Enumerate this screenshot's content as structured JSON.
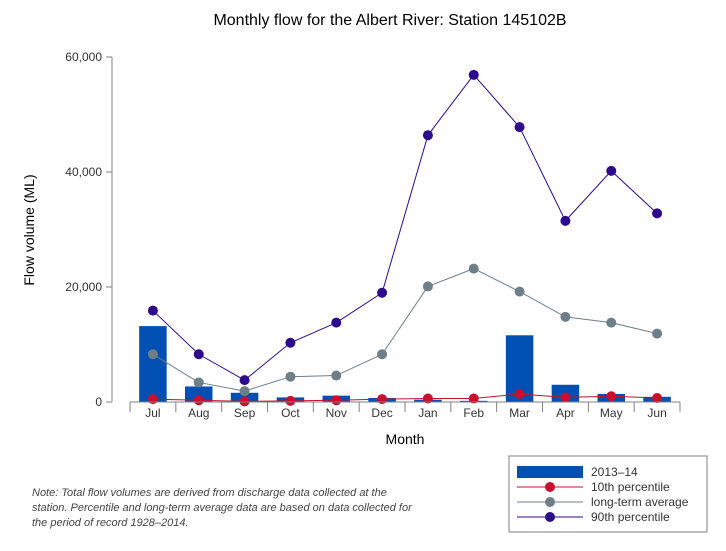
{
  "chart_data": {
    "type": "bar",
    "title": "Monthly flow for the Albert River: Station 145102B",
    "xlabel": "Month",
    "ylabel": "Flow volume (ML)",
    "ylim": [
      0,
      60000
    ],
    "yticks": [
      0,
      20000,
      40000,
      60000
    ],
    "ytick_labels": [
      "0",
      "20,000",
      "40,000",
      "60,000"
    ],
    "grid": false,
    "legend_position": "bottom-right",
    "categories": [
      "Jul",
      "Aug",
      "Sep",
      "Oct",
      "Nov",
      "Dec",
      "Jan",
      "Feb",
      "Mar",
      "Apr",
      "May",
      "Jun"
    ],
    "series": [
      {
        "name": "2013–14",
        "kind": "bar",
        "color": "#0050b4",
        "values": [
          13200,
          2700,
          1600,
          800,
          1100,
          700,
          400,
          200,
          11600,
          3000,
          1400,
          900
        ]
      },
      {
        "name": "10th percentile",
        "kind": "line",
        "color": "#c8102e",
        "values": [
          500,
          300,
          100,
          200,
          300,
          500,
          600,
          600,
          1400,
          800,
          1000,
          700
        ]
      },
      {
        "name": "long-term average",
        "kind": "line",
        "color": "#6e7f87",
        "values": [
          8300,
          3400,
          1900,
          4400,
          4600,
          8300,
          20100,
          23200,
          19200,
          14800,
          13800,
          11900
        ]
      },
      {
        "name": "90th percentile",
        "kind": "line",
        "color": "#2e0a8c",
        "values": [
          15900,
          8300,
          3800,
          10300,
          13800,
          19000,
          46400,
          56900,
          47800,
          31500,
          40200,
          32800
        ]
      }
    ]
  },
  "note": "Note: Total flow volumes are derived from discharge data collected at the station. Percentile and long-term average data are based on data collected for the period of record 1928–2014."
}
